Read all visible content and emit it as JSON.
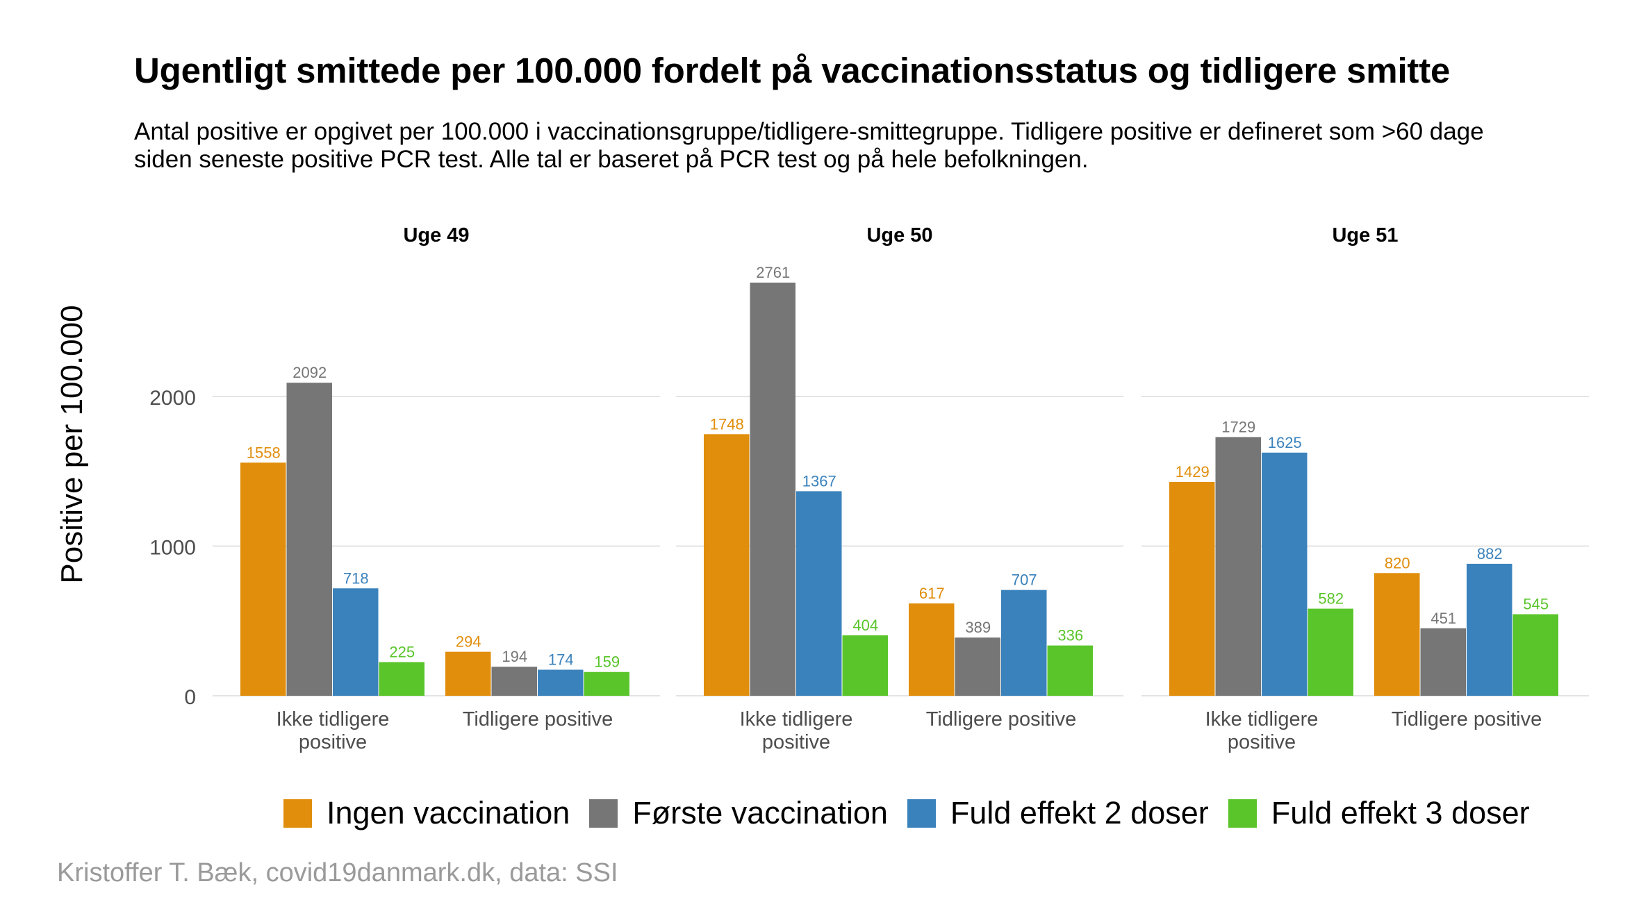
{
  "title": "Ugentligt smittede per 100.000 fordelt på vaccinationsstatus og tidligere smitte",
  "subtitle": "Antal positive er opgivet per 100.000 i vaccinationsgruppe/tidligere-smittegruppe. Tidligere positive er defineret som >60 dage siden seneste positive PCR test. Alle tal er baseret på PCR test og på hele befolkningen.",
  "caption": "Kristoffer T. Bæk, covid19danmark.dk, data: SSI",
  "legend": [
    {
      "label": "Ingen vaccination",
      "color": "#E08E0B"
    },
    {
      "label": "Første vaccination",
      "color": "#767676"
    },
    {
      "label": "Fuld effekt 2 doser",
      "color": "#3A82BC"
    },
    {
      "label": "Fuld effekt 3 doser",
      "color": "#59C52A"
    }
  ],
  "chart_data": {
    "type": "bar",
    "ylabel": "Positive per 100.000",
    "ylim": [
      0,
      2900
    ],
    "yticks": [
      0,
      1000,
      2000
    ],
    "grid": true,
    "legend_position": "bottom",
    "categories": [
      "Ikke tidligere positive",
      "Tidligere positive"
    ],
    "series_names": [
      "Ingen vaccination",
      "Første vaccination",
      "Fuld effekt 2 doser",
      "Fuld effekt 3 doser"
    ],
    "panels": [
      {
        "title": "Uge 49",
        "values": [
          [
            1558,
            2092,
            718,
            225
          ],
          [
            294,
            194,
            174,
            159
          ]
        ]
      },
      {
        "title": "Uge 50",
        "values": [
          [
            1748,
            2761,
            1367,
            404
          ],
          [
            617,
            389,
            707,
            336
          ]
        ]
      },
      {
        "title": "Uge 51",
        "values": [
          [
            1429,
            1729,
            1625,
            582
          ],
          [
            820,
            451,
            882,
            545
          ]
        ]
      }
    ]
  }
}
